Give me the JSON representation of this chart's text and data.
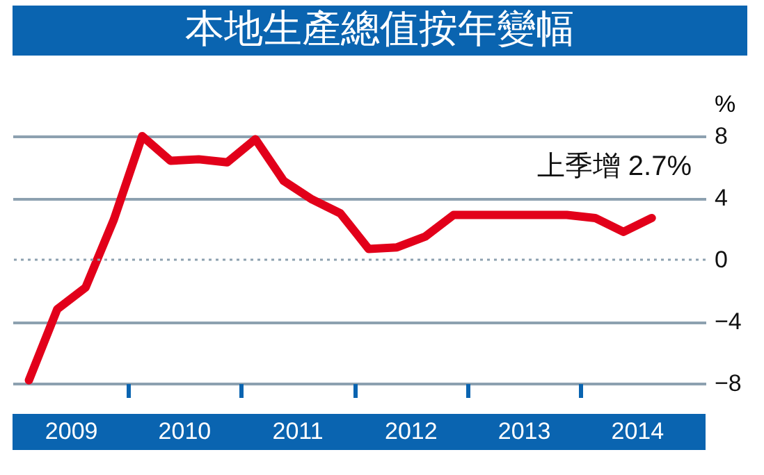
{
  "chart_data": {
    "type": "line",
    "title": "本地生產總值按年變幅",
    "ylabel": "%",
    "x": [
      2009.125,
      2009.375,
      2009.625,
      2009.875,
      2010.125,
      2010.375,
      2010.625,
      2010.875,
      2011.125,
      2011.375,
      2011.625,
      2011.875,
      2012.125,
      2012.375,
      2012.625,
      2012.875,
      2013.125,
      2013.375,
      2013.625,
      2013.875,
      2014.125,
      2014.375,
      2014.625
    ],
    "series": [
      {
        "color": "#e2001a",
        "values": [
          -7.8,
          -3.2,
          -1.8,
          2.6,
          8.0,
          6.4,
          6.5,
          6.3,
          7.8,
          5.1,
          3.9,
          3.0,
          0.7,
          0.8,
          1.5,
          2.9,
          2.9,
          2.9,
          2.9,
          2.9,
          2.7,
          1.8,
          2.7
        ]
      }
    ],
    "xlim": [
      2008.98,
      2015.1
    ],
    "xticks": [
      {
        "value": 2009.5,
        "label": "2009"
      },
      {
        "value": 2010,
        "label": null
      },
      {
        "value": 2010.5,
        "label": "2010"
      },
      {
        "value": 2011,
        "label": null
      },
      {
        "value": 2011.5,
        "label": "2011"
      },
      {
        "value": 2012,
        "label": null
      },
      {
        "value": 2012.5,
        "label": "2012"
      },
      {
        "value": 2013,
        "label": null
      },
      {
        "value": 2013.5,
        "label": "2013"
      },
      {
        "value": 2014,
        "label": null
      },
      {
        "value": 2014.5,
        "label": "2014"
      }
    ],
    "ylim": [
      -8,
      8
    ],
    "yticks": [
      -8,
      -4,
      0,
      4,
      8
    ],
    "grid": "y",
    "ref_lines": [
      {
        "axis": "y",
        "value": 0,
        "color": "#8da1b0",
        "line_style": "dotted"
      }
    ],
    "annotations": [
      "上季增 2.7%"
    ],
    "marker": "none",
    "line_style": "solid",
    "legend": false
  }
}
